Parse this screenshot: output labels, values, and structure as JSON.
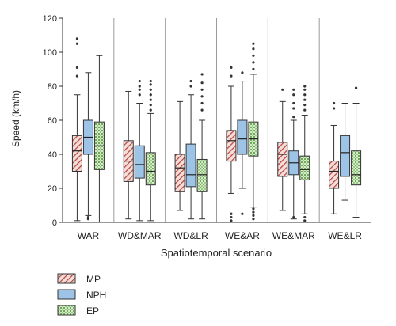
{
  "chart_data": {
    "type": "box",
    "xlabel": "Spatiotemporal scenario",
    "ylabel": "Speed (km/h)",
    "ylim": [
      0,
      120
    ],
    "yticks": [
      0,
      20,
      40,
      60,
      80,
      100,
      120
    ],
    "grid": false,
    "legend_position": "bottom-left",
    "categories": [
      "WAR",
      "WD&MAR",
      "WD&LR",
      "WE&AR",
      "WE&MAR",
      "WE&LR"
    ],
    "series": [
      {
        "name": "MP",
        "color": "#c0504d",
        "pattern": "diagonal-hatch",
        "boxes": [
          {
            "whisker_low": 1,
            "q1": 30,
            "median": 42,
            "q3": 51,
            "whisker_high": 75,
            "outliers": [
              86,
              91,
              105,
              108
            ]
          },
          {
            "whisker_low": 2,
            "q1": 24,
            "median": 36,
            "q3": 48,
            "whisker_high": 77,
            "outliers": []
          },
          {
            "whisker_low": 7,
            "q1": 18,
            "median": 32,
            "q3": 40,
            "whisker_high": 71,
            "outliers": []
          },
          {
            "whisker_low": 17,
            "q1": 36,
            "median": 48,
            "q3": 54,
            "whisker_high": 80,
            "outliers": [
              1,
              3,
              5,
              86,
              91
            ]
          },
          {
            "whisker_low": 7,
            "q1": 27,
            "median": 40,
            "q3": 47,
            "whisker_high": 71,
            "outliers": [
              78
            ]
          },
          {
            "whisker_low": 5,
            "q1": 20,
            "median": 30,
            "q3": 36,
            "whisker_high": 57,
            "outliers": [
              67,
              70
            ]
          }
        ]
      },
      {
        "name": "NPH",
        "color": "#9dc3e6",
        "pattern": "solid",
        "boxes": [
          {
            "whisker_low": 4,
            "q1": 40,
            "median": 50,
            "q3": 60,
            "whisker_high": 88,
            "outliers": [
              2,
              3
            ]
          },
          {
            "whisker_low": 1,
            "q1": 26,
            "median": 34,
            "q3": 45,
            "whisker_high": 70,
            "outliers": [
              75,
              78,
              80,
              83
            ]
          },
          {
            "whisker_low": 2,
            "q1": 21,
            "median": 28,
            "q3": 46,
            "whisker_high": 75,
            "outliers": [
              80,
              83
            ]
          },
          {
            "whisker_low": 20,
            "q1": 40,
            "median": 49,
            "q3": 60,
            "whisker_high": 83,
            "outliers": [
              5,
              88
            ]
          },
          {
            "whisker_low": 2,
            "q1": 28,
            "median": 35,
            "q3": 42,
            "whisker_high": 60,
            "outliers": [
              3,
              62,
              67,
              70,
              75,
              78
            ]
          },
          {
            "whisker_low": 13,
            "q1": 27,
            "median": 41,
            "q3": 51,
            "whisker_high": 70,
            "outliers": []
          }
        ]
      },
      {
        "name": "EP",
        "color": "#a9d18e",
        "pattern": "dotted",
        "boxes": [
          {
            "whisker_low": 0,
            "q1": 31,
            "median": 45,
            "q3": 59,
            "whisker_high": 98,
            "outliers": []
          },
          {
            "whisker_low": 1,
            "q1": 22,
            "median": 30,
            "q3": 41,
            "whisker_high": 64,
            "outliers": [
              66,
              69,
              72,
              75,
              78,
              81,
              83
            ]
          },
          {
            "whisker_low": 2,
            "q1": 18,
            "median": 28,
            "q3": 37,
            "whisker_high": 60,
            "outliers": [
              66,
              70,
              74,
              78,
              82,
              87
            ]
          },
          {
            "whisker_low": 9,
            "q1": 39,
            "median": 49,
            "q3": 59,
            "whisker_high": 87,
            "outliers": [
              2,
              4,
              6,
              8,
              90,
              94,
              98,
              102,
              105
            ]
          },
          {
            "whisker_low": 5,
            "q1": 25,
            "median": 31,
            "q3": 39,
            "whisker_high": 63,
            "outliers": [
              1,
              3,
              66,
              69,
              72,
              75,
              78,
              80
            ]
          },
          {
            "whisker_low": 3,
            "q1": 22,
            "median": 28,
            "q3": 42,
            "whisker_high": 70,
            "outliers": [
              79
            ]
          }
        ]
      }
    ]
  }
}
